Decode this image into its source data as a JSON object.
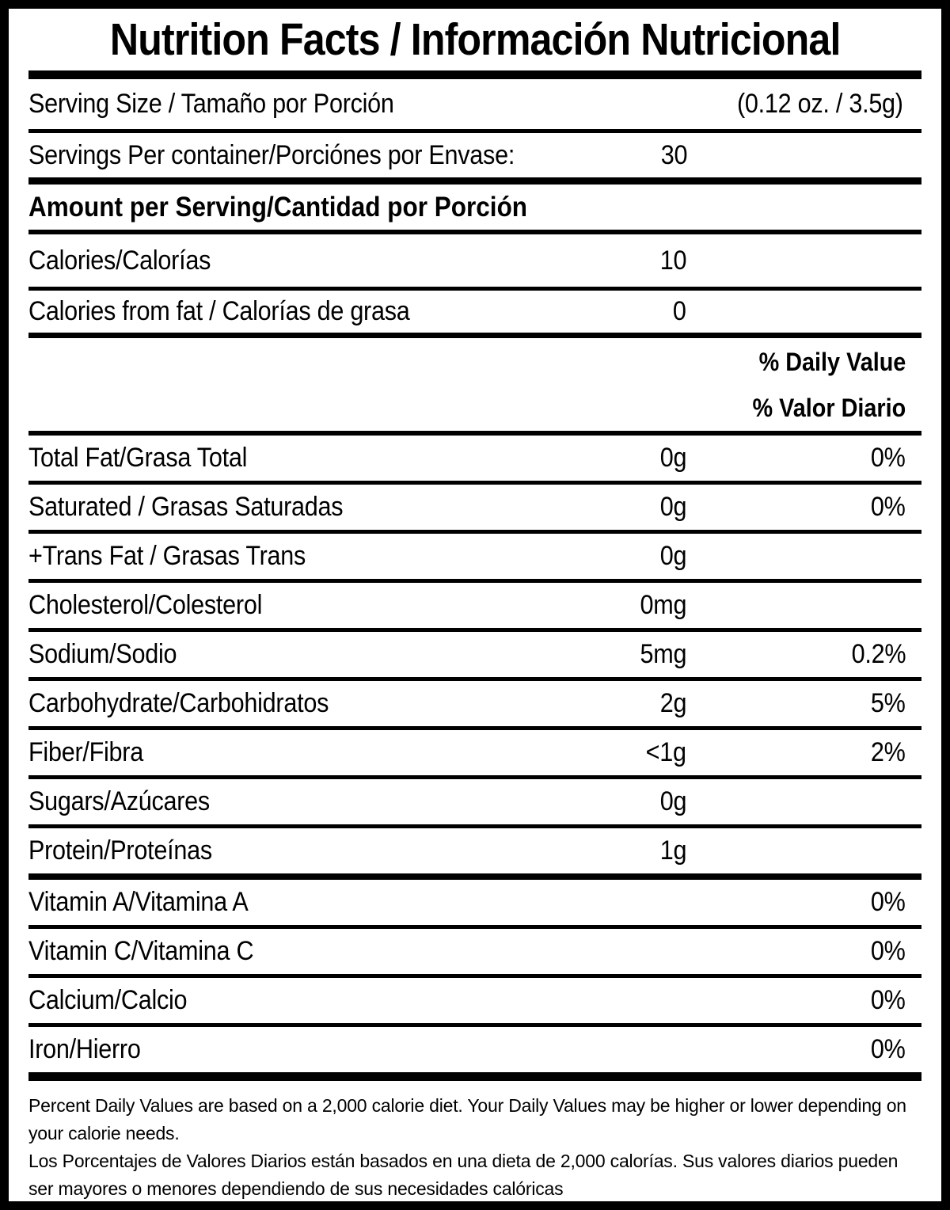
{
  "title": "Nutrition Facts / Información Nutricional",
  "serving_size": {
    "label": "Serving Size / Tamaño por Porción",
    "value": "(0.12 oz. / 3.5g)"
  },
  "servings_per_container": {
    "label": "Servings Per container/Porciónes por Envase:",
    "value": "30"
  },
  "amount_heading": "Amount per Serving/Cantidad por Porción",
  "calories": {
    "label": "Calories/Calorías",
    "value": "10"
  },
  "calories_from_fat": {
    "label": "Calories from fat / Calorías de grasa",
    "value": "0"
  },
  "dv_header_en": "% Daily Value",
  "dv_header_es": "% Valor Diario",
  "nutrients": [
    {
      "label": "Total Fat/Grasa Total",
      "amount": "0g",
      "dv": "0%"
    },
    {
      "label": "Saturated / Grasas Saturadas",
      "amount": "0g",
      "dv": "0%"
    },
    {
      "label": "+Trans Fat / Grasas Trans",
      "amount": "0g",
      "dv": ""
    },
    {
      "label": "Cholesterol/Colesterol",
      "amount": "0mg",
      "dv": ""
    },
    {
      "label": "Sodium/Sodio",
      "amount": "5mg",
      "dv": "0.2%"
    },
    {
      "label": "Carbohydrate/Carbohidratos",
      "amount": "2g",
      "dv": "5%"
    },
    {
      "label": "Fiber/Fibra",
      "amount": "<1g",
      "dv": "2%"
    },
    {
      "label": "Sugars/Azúcares",
      "amount": "0g",
      "dv": ""
    },
    {
      "label": "Protein/Proteínas",
      "amount": "1g",
      "dv": ""
    },
    {
      "label": "Vitamin A/Vitamina A",
      "amount": "",
      "dv": "0%"
    },
    {
      "label": "Vitamin C/Vitamina C",
      "amount": "",
      "dv": "0%"
    },
    {
      "label": "Calcium/Calcio",
      "amount": "",
      "dv": "0%"
    },
    {
      "label": "Iron/Hierro",
      "amount": "",
      "dv": "0%"
    }
  ],
  "footnote_en": "Percent Daily Values are based on a 2,000 calorie diet. Your Daily Values may be higher or lower depending on your calorie needs.",
  "footnote_es": "Los Porcentajes de Valores Diarios están basados en una dieta de 2,000 calorías. Sus valores diarios pueden ser mayores o menores dependiendo de sus necesidades calóricas",
  "colors": {
    "text": "#000000",
    "background": "#ffffff"
  }
}
